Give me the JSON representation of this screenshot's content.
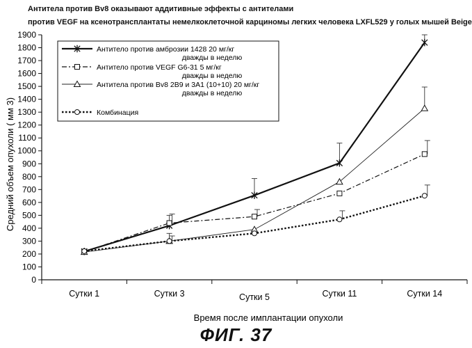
{
  "title_line1": "Антитела против Bv8 оказывают аддитивные эффекты с антителами",
  "title_line2": "против VEGF на ксенотрансплантаты немелкоклеточной карциномы легких человека LXFL529 у голых мышей Beige",
  "figure_label": "ФИГ. 37",
  "chart_data": {
    "type": "line",
    "title": "Антитела против Bv8 оказывают аддитивные эффекты с антителами против VEGF на ксенотрансплантаты немелкоклеточной карциномы легких человека LXFL529 у голых мышей Beige",
    "xlabel": "Время после имплантации опухоли",
    "ylabel": "Средний объем опухоли  ( мм 3)",
    "categories": [
      "Сутки   1",
      "Сутки   3",
      "Сутки   5",
      "Сутки   11",
      "Сутки   14"
    ],
    "ylim": [
      0,
      1900
    ],
    "yticks": [
      0,
      100,
      200,
      300,
      400,
      500,
      600,
      700,
      800,
      900,
      1000,
      1100,
      1200,
      1300,
      1400,
      1500,
      1600,
      1700,
      1800,
      1900
    ],
    "grid": false,
    "legend_position": "top-left",
    "series": [
      {
        "name": "Антитело против амброзии 1428 20 мг/кг дважды в неделю",
        "legend_lines": [
          "Антитело против амброзии 1428 20 мг/кг",
          "дважды в неделю"
        ],
        "marker": "x",
        "dash": "solid",
        "values": [
          220,
          420,
          655,
          905,
          1840
        ],
        "error_upper": [
          null,
          500,
          785,
          1060,
          1900
        ]
      },
      {
        "name": "Антитело против VEGF G6-31 5 мг/кг дважды в неделю",
        "legend_lines": [
          "Антитело против VEGF G6-31 5 мг/кг",
          "дважды в неделю"
        ],
        "marker": "square",
        "dash": "dashdot",
        "values": [
          218,
          440,
          490,
          670,
          975
        ],
        "error_upper": [
          null,
          510,
          545,
          null,
          1080
        ]
      },
      {
        "name": "Антитела против Bv8 2B9 и 3A1 (10+10) 20 мг/кг дважды в неделю",
        "legend_lines": [
          "Антитела против Bv8 2B9 и 3A1 (10+10) 20 мг/кг",
          "дважды в неделю"
        ],
        "marker": "triangle",
        "dash": "thin",
        "values": [
          215,
          300,
          390,
          760,
          1330
        ],
        "error_upper": [
          null,
          360,
          null,
          null,
          1495
        ]
      },
      {
        "name": "Комбинация",
        "legend_lines": [
          "Комбинация"
        ],
        "marker": "circle",
        "dash": "dotted",
        "values": [
          222,
          300,
          360,
          468,
          652
        ],
        "error_upper": [
          null,
          340,
          null,
          535,
          735
        ]
      }
    ]
  }
}
